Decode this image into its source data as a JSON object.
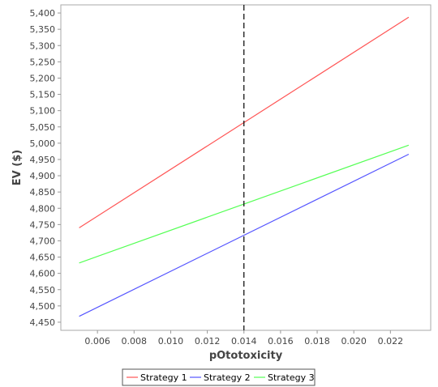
{
  "chart_data": {
    "type": "line",
    "xlabel": "pOtotoxicity",
    "ylabel": "EV ($)",
    "xlim": [
      0.004,
      0.0242
    ],
    "ylim": [
      4425,
      5425
    ],
    "x_ticks": [
      "0.006",
      "0.008",
      "0.010",
      "0.012",
      "0.014",
      "0.016",
      "0.018",
      "0.020",
      "0.022"
    ],
    "x_tick_values": [
      0.006,
      0.008,
      0.01,
      0.012,
      0.014,
      0.016,
      0.018,
      0.02,
      0.022
    ],
    "y_ticks": [
      "4,450",
      "4,500",
      "4,550",
      "4,600",
      "4,650",
      "4,700",
      "4,750",
      "4,800",
      "4,850",
      "4,900",
      "4,950",
      "5,000",
      "5,050",
      "5,100",
      "5,150",
      "5,200",
      "5,250",
      "5,300",
      "5,350",
      "5,400"
    ],
    "y_tick_values": [
      4450,
      4500,
      4550,
      4600,
      4650,
      4700,
      4750,
      4800,
      4850,
      4900,
      4950,
      5000,
      5050,
      5100,
      5150,
      5200,
      5250,
      5300,
      5350,
      5400
    ],
    "reference_line": {
      "x": 0.014,
      "style": "dashed",
      "color": "#000000"
    },
    "series": [
      {
        "name": "Strategy 1",
        "color": "#ff5555",
        "x": [
          0.005,
          0.023
        ],
        "y": [
          4740,
          5387
        ]
      },
      {
        "name": "Strategy 2",
        "color": "#5555ff",
        "x": [
          0.005,
          0.023
        ],
        "y": [
          4468,
          4966
        ]
      },
      {
        "name": "Strategy 3",
        "color": "#55ff55",
        "x": [
          0.005,
          0.023
        ],
        "y": [
          4632,
          4994
        ]
      }
    ],
    "grid": false,
    "legend": "bottom-center",
    "plot_background": "#ffffff",
    "plot_border": "#aaaaaa"
  }
}
